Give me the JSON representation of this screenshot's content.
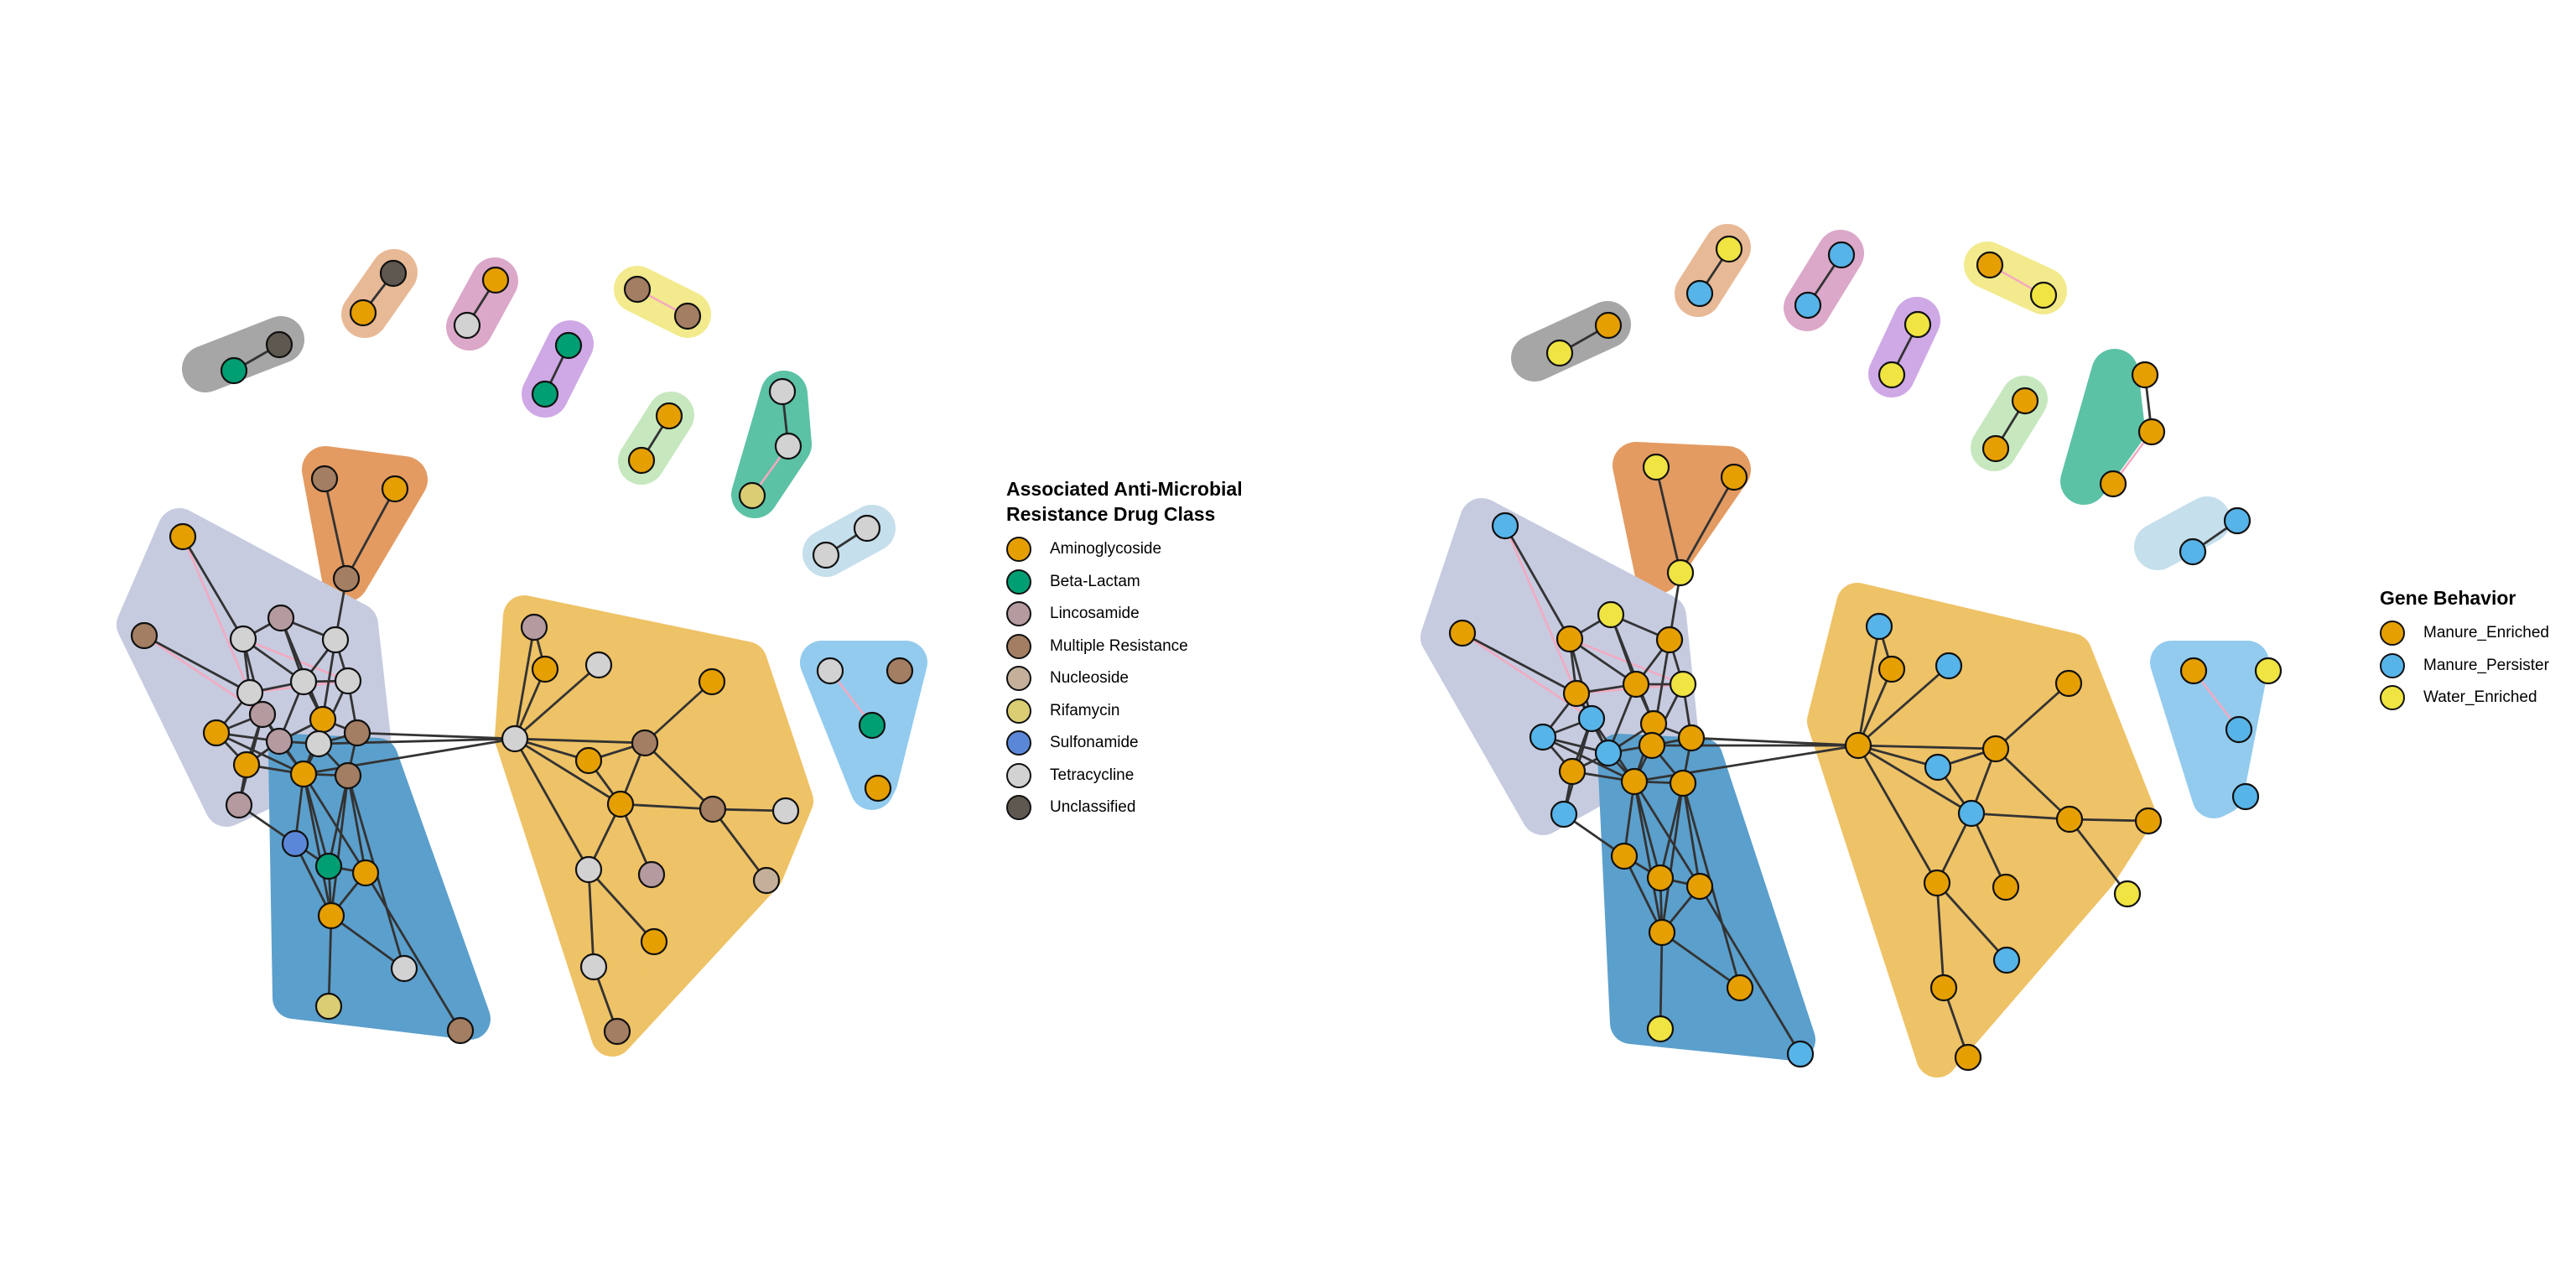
{
  "colors": {
    "hulls": {
      "gray": "#a6a6a6",
      "peach": "#e8b996",
      "pink": "#dba8c9",
      "lilac": "#cfa8e6",
      "yellow": "#f2ea8c",
      "lightgreen": "#c7e8bf",
      "teal": "#5cc2a5",
      "pale_blue": "#c5dfec",
      "orange": "#e39b62",
      "lavender": "#c6cbe0",
      "steel_blue": "#5b9fcc",
      "gold": "#eec266",
      "sky": "#93cbee"
    },
    "edge": "#333333",
    "edge_alt": "#f4a9c0"
  },
  "legend_drug": {
    "title_line1": "Associated Anti-Microbial",
    "title_line2": "Resistance Drug Class",
    "items": [
      {
        "label": "Aminoglycoside",
        "color": "#e69f00"
      },
      {
        "label": "Beta-Lactam",
        "color": "#009e73"
      },
      {
        "label": "Lincosamide",
        "color": "#b59a9f"
      },
      {
        "label": "Multiple Resistance",
        "color": "#a37e62"
      },
      {
        "label": "Nucleoside",
        "color": "#c4b09a"
      },
      {
        "label": "Rifamycin",
        "color": "#dbcd72"
      },
      {
        "label": "Sulfonamide",
        "color": "#5b87d8"
      },
      {
        "label": "Tetracycline",
        "color": "#d2d2d2"
      },
      {
        "label": "Unclassified",
        "color": "#5e5850"
      }
    ]
  },
  "legend_behavior": {
    "title": "Gene Behavior",
    "items": [
      {
        "label": "Manure_Enriched",
        "color": "#e69f00"
      },
      {
        "label": "Manure_Persister",
        "color": "#56b4e9"
      },
      {
        "label": "Water_Enriched",
        "color": "#f0e442"
      }
    ]
  }
}
